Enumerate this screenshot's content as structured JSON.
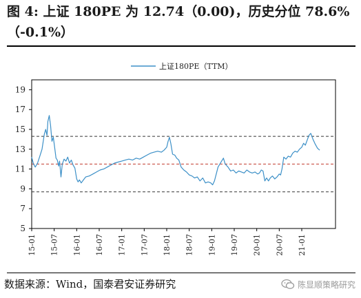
{
  "header": {
    "title_line1": "图 4: 上证 180PE 为 12.74（0.00)，历史分位 78.6%",
    "title_line2": "（-0.1%）"
  },
  "footer": {
    "source": "数据来源：Wind，国泰君安证券研究",
    "watermark": "陈显顺策略研究",
    "watermark_icon": "wechat-icon"
  },
  "chart_data": {
    "type": "line",
    "title": "",
    "xlabel": "",
    "ylabel": "",
    "ylim": [
      5,
      20
    ],
    "yticks": [
      5,
      7,
      9,
      11,
      13,
      15,
      17,
      19
    ],
    "xlim": [
      2015.0,
      2021.75
    ],
    "xtick_labels": [
      "15-01",
      "15-07",
      "16-01",
      "16-07",
      "17-01",
      "17-07",
      "18-01",
      "18-07",
      "19-01",
      "19-07",
      "20-01",
      "20-07",
      "21-01"
    ],
    "legend": {
      "position": "top-center",
      "entries": [
        "上证180PE（TTM）"
      ]
    },
    "grid": false,
    "reference_lines": [
      {
        "value": 14.3,
        "style": "dashed",
        "color": "#333333"
      },
      {
        "value": 11.5,
        "style": "dashed",
        "color": "#c0392b"
      },
      {
        "value": 8.7,
        "style": "dashed",
        "color": "#333333"
      }
    ],
    "series": [
      {
        "name": "上证180PE（TTM）",
        "color": "#3b8fc7",
        "x": [
          2015.0,
          2015.04,
          2015.08,
          2015.13,
          2015.18,
          2015.23,
          2015.28,
          2015.31,
          2015.34,
          2015.36,
          2015.39,
          2015.42,
          2015.45,
          2015.48,
          2015.51,
          2015.54,
          2015.57,
          2015.6,
          2015.62,
          2015.65,
          2015.68,
          2015.72,
          2015.76,
          2015.8,
          2015.84,
          2015.88,
          2015.92,
          2015.96,
          2016.0,
          2016.03,
          2016.06,
          2016.1,
          2016.15,
          2016.2,
          2016.28,
          2016.36,
          2016.44,
          2016.52,
          2016.6,
          2016.68,
          2016.76,
          2016.84,
          2016.92,
          2017.0,
          2017.08,
          2017.16,
          2017.24,
          2017.32,
          2017.4,
          2017.48,
          2017.56,
          2017.64,
          2017.72,
          2017.8,
          2017.88,
          2017.94,
          2018.0,
          2018.03,
          2018.06,
          2018.09,
          2018.13,
          2018.18,
          2018.22,
          2018.27,
          2018.32,
          2018.38,
          2018.44,
          2018.5,
          2018.56,
          2018.62,
          2018.68,
          2018.74,
          2018.8,
          2018.86,
          2018.92,
          2018.98,
          2019.02,
          2019.06,
          2019.1,
          2019.14,
          2019.18,
          2019.22,
          2019.26,
          2019.3,
          2019.36,
          2019.42,
          2019.48,
          2019.54,
          2019.6,
          2019.66,
          2019.72,
          2019.78,
          2019.84,
          2019.9,
          2019.96,
          2020.02,
          2020.06,
          2020.1,
          2020.14,
          2020.18,
          2020.22,
          2020.26,
          2020.3,
          2020.35,
          2020.4,
          2020.45,
          2020.5,
          2020.53,
          2020.56,
          2020.6,
          2020.65,
          2020.7,
          2020.75,
          2020.8,
          2020.85,
          2020.9,
          2020.95,
          2021.0,
          2021.04,
          2021.08,
          2021.12,
          2021.16,
          2021.2,
          2021.25,
          2021.3,
          2021.35,
          2021.4
        ],
        "values": [
          12.2,
          11.5,
          11.2,
          11.6,
          12.3,
          13.0,
          14.5,
          15.0,
          14.4,
          15.8,
          16.4,
          15.4,
          13.8,
          14.2,
          13.2,
          12.1,
          11.9,
          11.3,
          11.8,
          10.2,
          11.5,
          12.0,
          11.8,
          12.2,
          11.6,
          11.9,
          11.4,
          11.1,
          10.0,
          9.7,
          9.9,
          9.6,
          9.9,
          10.2,
          10.3,
          10.5,
          10.7,
          10.9,
          11.0,
          11.2,
          11.4,
          11.6,
          11.7,
          11.8,
          11.9,
          12.0,
          11.9,
          12.1,
          12.0,
          12.2,
          12.4,
          12.6,
          12.7,
          12.8,
          12.7,
          12.9,
          13.2,
          13.8,
          14.2,
          13.6,
          12.5,
          12.4,
          12.1,
          11.9,
          11.2,
          10.9,
          10.7,
          10.4,
          10.3,
          10.1,
          10.2,
          9.8,
          10.1,
          9.6,
          9.7,
          9.6,
          9.4,
          9.8,
          10.5,
          11.2,
          11.5,
          11.8,
          12.1,
          11.5,
          11.2,
          10.8,
          10.9,
          10.6,
          10.8,
          10.7,
          10.6,
          10.9,
          10.7,
          10.6,
          10.7,
          10.5,
          10.6,
          10.9,
          10.8,
          9.8,
          10.1,
          9.8,
          10.1,
          10.3,
          10.0,
          10.2,
          10.5,
          10.4,
          11.0,
          12.2,
          12.0,
          12.3,
          12.2,
          12.6,
          12.8,
          12.7,
          13.0,
          13.2,
          13.6,
          13.4,
          13.9,
          14.4,
          14.6,
          14.0,
          13.5,
          13.1,
          12.9
        ]
      }
    ]
  }
}
